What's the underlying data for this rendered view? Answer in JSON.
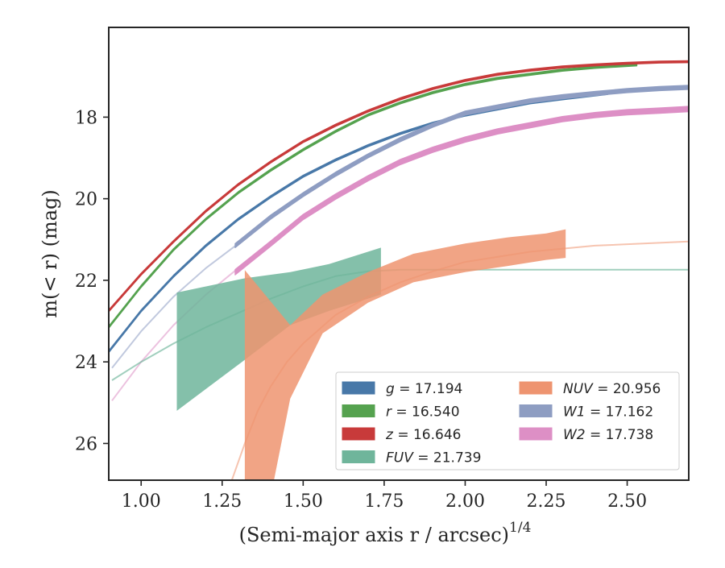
{
  "chart_data": {
    "type": "line",
    "xlabel": "(Semi-major axis r / arcsec)",
    "xlabel_exponent": "1/4",
    "ylabel": "m(< r) (mag)",
    "xlim": [
      0.9,
      2.69
    ],
    "ylim": [
      26.9,
      15.8
    ],
    "y_inverted": true,
    "x_ticks": [
      1.0,
      1.25,
      1.5,
      1.75,
      2.0,
      2.25,
      2.5
    ],
    "x_tick_labels": [
      "1.00",
      "1.25",
      "1.50",
      "1.75",
      "2.00",
      "2.25",
      "2.50"
    ],
    "y_ticks": [
      18,
      20,
      22,
      24,
      26
    ],
    "y_tick_labels": [
      "18",
      "20",
      "22",
      "24",
      "26"
    ],
    "legend_placement": "lower-right",
    "legend_columns": 2,
    "legend": [
      {
        "band": "g",
        "value": "17.194",
        "color": "#4878a8"
      },
      {
        "band": "r",
        "value": "16.540",
        "color": "#55a24f"
      },
      {
        "band": "z",
        "value": "16.646",
        "color": "#c83a3a"
      },
      {
        "band": "FUV",
        "value": "21.739",
        "color": "#6fb59b"
      },
      {
        "band": "NUV",
        "value": "20.956",
        "color": "#ee9470"
      },
      {
        "band": "W1",
        "value": "17.162",
        "color": "#8e9dc2"
      },
      {
        "band": "W2",
        "value": "17.738",
        "color": "#dd8fc5"
      }
    ],
    "series": [
      {
        "band": "g",
        "color": "#4878a8",
        "kind": "band",
        "width": 0.05,
        "x": [
          0.9,
          1.0,
          1.1,
          1.2,
          1.3,
          1.4,
          1.5,
          1.6,
          1.7,
          1.8,
          1.9,
          2.0,
          2.1,
          2.2,
          2.3,
          2.44
        ],
        "y": [
          23.75,
          22.75,
          21.9,
          21.15,
          20.5,
          19.95,
          19.45,
          19.05,
          18.7,
          18.4,
          18.15,
          17.95,
          17.8,
          17.65,
          17.55,
          17.42
        ]
      },
      {
        "band": "r",
        "color": "#55a24f",
        "kind": "band",
        "width": 0.05,
        "x": [
          0.9,
          1.0,
          1.1,
          1.2,
          1.3,
          1.4,
          1.5,
          1.6,
          1.7,
          1.8,
          1.9,
          2.0,
          2.1,
          2.2,
          2.3,
          2.4,
          2.53
        ],
        "y": [
          23.15,
          22.15,
          21.25,
          20.5,
          19.85,
          19.3,
          18.8,
          18.35,
          17.95,
          17.65,
          17.4,
          17.2,
          17.05,
          16.95,
          16.85,
          16.78,
          16.72
        ]
      },
      {
        "band": "z",
        "color": "#c83a3a",
        "kind": "band",
        "width": 0.05,
        "x": [
          0.9,
          1.0,
          1.1,
          1.2,
          1.3,
          1.4,
          1.5,
          1.6,
          1.7,
          1.8,
          1.9,
          2.0,
          2.1,
          2.2,
          2.3,
          2.4,
          2.5,
          2.6,
          2.69
        ],
        "y": [
          22.75,
          21.85,
          21.05,
          20.3,
          19.65,
          19.1,
          18.6,
          18.2,
          17.85,
          17.55,
          17.3,
          17.1,
          16.95,
          16.85,
          16.77,
          16.72,
          16.68,
          16.65,
          16.64
        ]
      },
      {
        "band": "W1",
        "color": "#8e9dc2",
        "kind": "model",
        "opacity": 0.55,
        "x": [
          0.91,
          1.0,
          1.1,
          1.2,
          1.3
        ],
        "y": [
          24.15,
          23.25,
          22.4,
          21.7,
          21.1
        ]
      },
      {
        "band": "W1",
        "color": "#8e9dc2",
        "kind": "band",
        "width": 0.1,
        "x": [
          1.29,
          1.4,
          1.5,
          1.6,
          1.7,
          1.8,
          1.9,
          2.0,
          2.1,
          2.2,
          2.3,
          2.4,
          2.5,
          2.6,
          2.69
        ],
        "y": [
          21.15,
          20.45,
          19.9,
          19.4,
          18.95,
          18.55,
          18.2,
          17.9,
          17.75,
          17.6,
          17.5,
          17.42,
          17.35,
          17.3,
          17.27
        ]
      },
      {
        "band": "W2",
        "color": "#dd8fc5",
        "kind": "model",
        "opacity": 0.55,
        "x": [
          0.91,
          1.0,
          1.1,
          1.2,
          1.3
        ],
        "y": [
          24.95,
          24.0,
          23.1,
          22.35,
          21.7
        ]
      },
      {
        "band": "W2",
        "color": "#dd8fc5",
        "kind": "band",
        "width": 0.13,
        "x": [
          1.29,
          1.4,
          1.5,
          1.6,
          1.7,
          1.8,
          1.9,
          2.0,
          2.1,
          2.2,
          2.3,
          2.4,
          2.5,
          2.6,
          2.69
        ],
        "y": [
          21.8,
          21.1,
          20.45,
          19.95,
          19.5,
          19.1,
          18.8,
          18.55,
          18.35,
          18.2,
          18.05,
          17.95,
          17.88,
          17.84,
          17.8
        ]
      },
      {
        "band": "FUV",
        "color": "#6fb59b",
        "kind": "model",
        "opacity": 0.65,
        "x": [
          0.91,
          1.0,
          1.1,
          1.2,
          1.3,
          1.4,
          1.5,
          1.6,
          1.7,
          1.8,
          2.0,
          2.2,
          2.4,
          2.69
        ],
        "y": [
          24.45,
          24.0,
          23.55,
          23.15,
          22.8,
          22.45,
          22.15,
          21.9,
          21.78,
          21.74,
          21.74,
          21.74,
          21.74,
          21.74
        ]
      },
      {
        "band": "FUV",
        "color": "#6fb59b",
        "kind": "polygon",
        "opacity": 0.85,
        "x": [
          1.11,
          1.32,
          1.46,
          1.58,
          1.74,
          1.74,
          1.58,
          1.46,
          1.32,
          1.11
        ],
        "y": [
          22.3,
          21.95,
          21.8,
          21.6,
          21.2,
          22.35,
          22.75,
          23.1,
          23.95,
          25.2
        ]
      },
      {
        "band": "NUV",
        "color": "#ee9470",
        "kind": "model",
        "opacity": 0.55,
        "x": [
          1.28,
          1.32,
          1.36,
          1.4,
          1.45,
          1.5,
          1.6,
          1.7,
          1.8,
          1.9,
          2.0,
          2.2,
          2.4,
          2.69
        ],
        "y": [
          26.9,
          26.0,
          25.2,
          24.6,
          24.0,
          23.55,
          22.85,
          22.4,
          22.05,
          21.78,
          21.55,
          21.3,
          21.15,
          21.05
        ]
      },
      {
        "band": "NUV",
        "color": "#ee9470",
        "kind": "polygon",
        "opacity": 0.85,
        "x": [
          1.32,
          1.46,
          1.56,
          1.7,
          1.84,
          2.0,
          2.13,
          2.25,
          2.31,
          2.31,
          2.25,
          2.13,
          2.0,
          1.84,
          1.7,
          1.56,
          1.46,
          1.41,
          1.32
        ],
        "y": [
          21.75,
          23.1,
          22.35,
          21.8,
          21.35,
          21.1,
          20.95,
          20.85,
          20.75,
          21.45,
          21.5,
          21.65,
          21.8,
          22.05,
          22.55,
          23.3,
          24.9,
          26.9,
          26.9
        ]
      }
    ]
  }
}
